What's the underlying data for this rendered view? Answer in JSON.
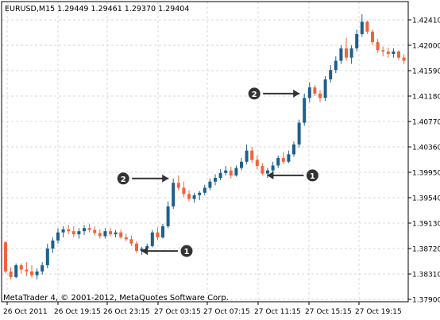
{
  "chart_data": {
    "type": "candlestick",
    "symbol_line": "EURUSD,M15  1.29449 1.29461 1.29370 1.29404",
    "copyright": "MetaTrader 4, © 2001-2012, MetaQuotes Software Corp.",
    "y_ticks": [
      "1.42410",
      "1.42000",
      "1.41590",
      "1.41180",
      "1.40770",
      "1.40360",
      "1.39950",
      "1.39540",
      "1.39130",
      "1.38720",
      "1.38310",
      "1.37900"
    ],
    "y_tick_values": [
      1.4241,
      1.42,
      1.4159,
      1.4118,
      1.4077,
      1.4036,
      1.3995,
      1.3954,
      1.3913,
      1.3872,
      1.3831,
      1.379
    ],
    "x_ticks": [
      "26 Oct 2011",
      "26 Oct 19:15",
      "26 Oct 23:15",
      "27 Oct 03:15",
      "27 Oct 07:15",
      "27 Oct 11:15",
      "27 Oct 15:15",
      "27 Oct 19:15"
    ],
    "ylim": [
      1.379,
      1.4251
    ],
    "bull_color": "#1f5f8b",
    "bear_color": "#f0643c",
    "grid": true,
    "candles": [
      [
        1.3882,
        1.3884,
        1.3832,
        1.3835
      ],
      [
        1.3835,
        1.3842,
        1.3822,
        1.3826
      ],
      [
        1.3826,
        1.3848,
        1.3824,
        1.3845
      ],
      [
        1.3845,
        1.3848,
        1.3832,
        1.3838
      ],
      [
        1.3838,
        1.385,
        1.3828,
        1.3835
      ],
      [
        1.3835,
        1.3845,
        1.3825,
        1.3829
      ],
      [
        1.3829,
        1.384,
        1.3822,
        1.3835
      ],
      [
        1.3835,
        1.385,
        1.383,
        1.3845
      ],
      [
        1.3845,
        1.388,
        1.384,
        1.3872
      ],
      [
        1.3872,
        1.389,
        1.3865,
        1.3885
      ],
      [
        1.3885,
        1.3905,
        1.388,
        1.3898
      ],
      [
        1.3898,
        1.3908,
        1.389,
        1.3903
      ],
      [
        1.3903,
        1.391,
        1.3895,
        1.39
      ],
      [
        1.39,
        1.3908,
        1.389,
        1.3895
      ],
      [
        1.3895,
        1.3905,
        1.3888,
        1.39
      ],
      [
        1.39,
        1.391,
        1.3894,
        1.3905
      ],
      [
        1.3905,
        1.3912,
        1.3898,
        1.3902
      ],
      [
        1.3902,
        1.3908,
        1.3893,
        1.3897
      ],
      [
        1.3897,
        1.3903,
        1.3888,
        1.3892
      ],
      [
        1.3892,
        1.3905,
        1.3888,
        1.39
      ],
      [
        1.39,
        1.3906,
        1.3892,
        1.3895
      ],
      [
        1.3895,
        1.3902,
        1.389,
        1.3898
      ],
      [
        1.3898,
        1.3903,
        1.3888,
        1.389
      ],
      [
        1.389,
        1.3896,
        1.3884,
        1.3887
      ],
      [
        1.3887,
        1.3893,
        1.3876,
        1.388
      ],
      [
        1.388,
        1.3884,
        1.3865,
        1.3868
      ],
      [
        1.3868,
        1.3875,
        1.3862,
        1.3872
      ],
      [
        1.3872,
        1.388,
        1.3868,
        1.3876
      ],
      [
        1.3876,
        1.3902,
        1.3874,
        1.3898
      ],
      [
        1.3898,
        1.3906,
        1.3886,
        1.389
      ],
      [
        1.389,
        1.3912,
        1.3888,
        1.3908
      ],
      [
        1.3908,
        1.3948,
        1.3905,
        1.394
      ],
      [
        1.394,
        1.3985,
        1.3936,
        1.3978
      ],
      [
        1.3978,
        1.399,
        1.3966,
        1.397
      ],
      [
        1.397,
        1.398,
        1.3955,
        1.396
      ],
      [
        1.396,
        1.3966,
        1.3948,
        1.3952
      ],
      [
        1.3952,
        1.3962,
        1.3946,
        1.3958
      ],
      [
        1.3958,
        1.3965,
        1.395,
        1.3962
      ],
      [
        1.3962,
        1.3975,
        1.3958,
        1.397
      ],
      [
        1.397,
        1.3985,
        1.3966,
        1.398
      ],
      [
        1.398,
        1.3992,
        1.3974,
        1.3986
      ],
      [
        1.3986,
        1.4,
        1.3982,
        1.3994
      ],
      [
        1.3994,
        1.4005,
        1.399,
        1.3998
      ],
      [
        1.3998,
        1.4004,
        1.3985,
        1.399
      ],
      [
        1.399,
        1.4006,
        1.3988,
        1.4002
      ],
      [
        1.4002,
        1.4018,
        1.3998,
        1.4012
      ],
      [
        1.4012,
        1.404,
        1.4008,
        1.403
      ],
      [
        1.403,
        1.4036,
        1.401,
        1.4015
      ],
      [
        1.4015,
        1.4022,
        1.4,
        1.4005
      ],
      [
        1.4005,
        1.401,
        1.399,
        1.3993
      ],
      [
        1.3993,
        1.4002,
        1.3986,
        1.3998
      ],
      [
        1.3998,
        1.4012,
        1.3994,
        1.4006
      ],
      [
        1.4006,
        1.4022,
        1.4002,
        1.4018
      ],
      [
        1.4018,
        1.4028,
        1.4008,
        1.4012
      ],
      [
        1.4012,
        1.403,
        1.401,
        1.4024
      ],
      [
        1.4024,
        1.4045,
        1.402,
        1.404
      ],
      [
        1.404,
        1.408,
        1.4035,
        1.4075
      ],
      [
        1.4075,
        1.4122,
        1.407,
        1.4115
      ],
      [
        1.4115,
        1.414,
        1.4108,
        1.4132
      ],
      [
        1.4132,
        1.4136,
        1.4118,
        1.4122
      ],
      [
        1.4122,
        1.4128,
        1.4108,
        1.4115
      ],
      [
        1.4115,
        1.415,
        1.411,
        1.4145
      ],
      [
        1.4145,
        1.4168,
        1.414,
        1.416
      ],
      [
        1.416,
        1.4182,
        1.4155,
        1.4175
      ],
      [
        1.4175,
        1.42,
        1.417,
        1.4195
      ],
      [
        1.4195,
        1.4212,
        1.4175,
        1.418
      ],
      [
        1.418,
        1.42,
        1.417,
        1.4195
      ],
      [
        1.4195,
        1.4225,
        1.419,
        1.4218
      ],
      [
        1.4218,
        1.425,
        1.4214,
        1.4238
      ],
      [
        1.4238,
        1.424,
        1.4218,
        1.4222
      ],
      [
        1.4222,
        1.4226,
        1.42,
        1.4205
      ],
      [
        1.4205,
        1.421,
        1.4188,
        1.4192
      ],
      [
        1.4192,
        1.4198,
        1.4182,
        1.419
      ],
      [
        1.419,
        1.4196,
        1.418,
        1.4186
      ],
      [
        1.4186,
        1.4195,
        1.418,
        1.419
      ],
      [
        1.419,
        1.4192,
        1.4176,
        1.418
      ],
      [
        1.418,
        1.4186,
        1.417,
        1.4175
      ]
    ],
    "annotations": [
      {
        "label": "1",
        "candle": 25,
        "price": 1.3868,
        "side": "right"
      },
      {
        "label": "2",
        "candle": 32,
        "price": 1.3985,
        "side": "left"
      },
      {
        "label": "1",
        "candle": 49,
        "price": 1.399,
        "side": "right"
      },
      {
        "label": "2",
        "candle": 57,
        "price": 1.4122,
        "side": "left"
      }
    ]
  }
}
